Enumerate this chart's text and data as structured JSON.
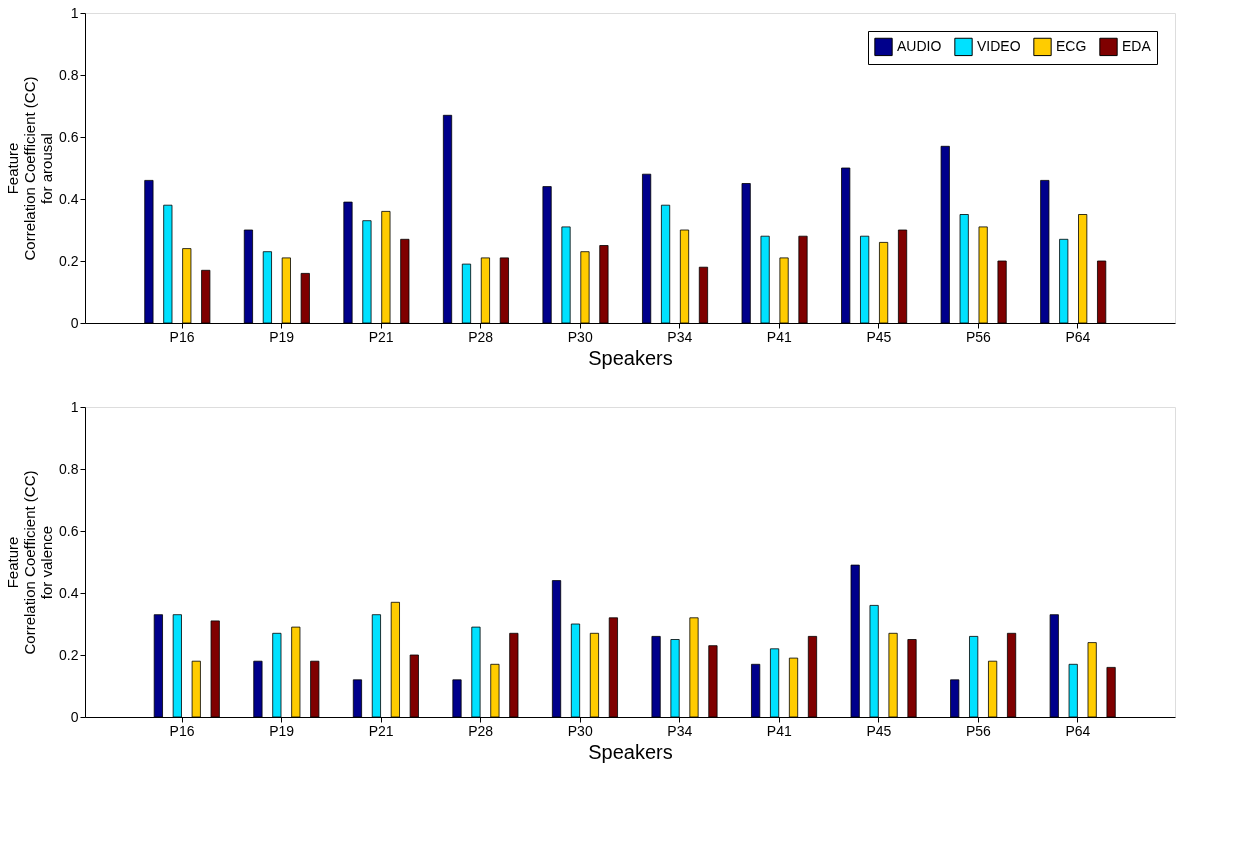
{
  "chart_data": [
    {
      "type": "bar",
      "xlabel": "Speakers",
      "ylabel": "Feature\nCorrelation Coefficient (CC)\nfor arousal",
      "categories": [
        "P16",
        "P19",
        "P21",
        "P28",
        "P30",
        "P34",
        "P41",
        "P45",
        "P56",
        "P64"
      ],
      "series": [
        {
          "name": "AUDIO",
          "color": "#00008b",
          "values": [
            0.46,
            0.3,
            0.39,
            0.67,
            0.44,
            0.48,
            0.45,
            0.5,
            0.57,
            0.46
          ]
        },
        {
          "name": "VIDEO",
          "color": "#00e1ff",
          "values": [
            0.38,
            0.23,
            0.33,
            0.19,
            0.31,
            0.38,
            0.28,
            0.28,
            0.35,
            0.27
          ]
        },
        {
          "name": "ECG",
          "color": "#ffcc00",
          "values": [
            0.24,
            0.21,
            0.36,
            0.21,
            0.23,
            0.3,
            0.21,
            0.26,
            0.31,
            0.35
          ]
        },
        {
          "name": "EDA",
          "color": "#7f0000",
          "values": [
            0.17,
            0.16,
            0.27,
            0.21,
            0.25,
            0.18,
            0.28,
            0.3,
            0.2,
            0.2
          ]
        }
      ],
      "ylim": [
        0,
        1
      ],
      "yticks": [
        0,
        0.2,
        0.4,
        0.6,
        0.8,
        1
      ],
      "grid": false,
      "legend": "top right"
    },
    {
      "type": "bar",
      "xlabel": "Speakers",
      "ylabel": "Feature\nCorrelation Coefficient (CC)\nfor valence",
      "categories": [
        "P16",
        "P19",
        "P21",
        "P28",
        "P30",
        "P34",
        "P41",
        "P45",
        "P56",
        "P64"
      ],
      "series": [
        {
          "color": "#00008b",
          "values": [
            0.33,
            0.18,
            0.12,
            0.12,
            0.44,
            0.26,
            0.17,
            0.49,
            0.12,
            0.33
          ]
        },
        {
          "color": "#00e1ff",
          "values": [
            0.33,
            0.27,
            0.33,
            0.29,
            0.3,
            0.25,
            0.22,
            0.36,
            0.26,
            0.17
          ]
        },
        {
          "color": "#ffcc00",
          "values": [
            0.18,
            0.29,
            0.37,
            0.17,
            0.27,
            0.32,
            0.19,
            0.27,
            0.18,
            0.24
          ]
        },
        {
          "color": "#7f0000",
          "values": [
            0.31,
            0.18,
            0.2,
            0.27,
            0.32,
            0.23,
            0.26,
            0.25,
            0.27,
            0.16
          ]
        }
      ],
      "ylim": [
        0,
        1
      ],
      "yticks": [
        0,
        0.2,
        0.4,
        0.6,
        0.8,
        1
      ],
      "grid": false
    }
  ]
}
